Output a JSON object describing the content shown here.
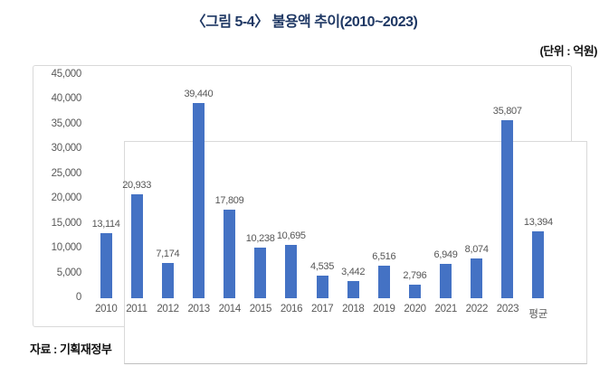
{
  "header": {
    "title": "〈그림 5-4〉 불용액 추이(2010~2023)",
    "unit_label": "(단위 : 억원)"
  },
  "footer": {
    "source": "자료 : 기획재정부"
  },
  "colors": {
    "bar": "#4472C4",
    "title": "#1F3864",
    "tick_label": "#595959",
    "value_label": "#555555",
    "frame_border": "#d9d9d9",
    "axis_line": "#bfbfbf"
  },
  "chart_data": {
    "type": "bar",
    "title": "불용액 추이(2010~2023)",
    "unit": "억원",
    "categories": [
      "2010",
      "2011",
      "2012",
      "2013",
      "2014",
      "2015",
      "2016",
      "2017",
      "2018",
      "2019",
      "2020",
      "2021",
      "2022",
      "2023",
      "평균"
    ],
    "values": [
      13114,
      20933,
      7174,
      39440,
      17809,
      10238,
      10695,
      4535,
      3442,
      6516,
      2796,
      6949,
      8074,
      35807,
      13394
    ],
    "value_labels": [
      "13,114",
      "20,933",
      "7,174",
      "39,440",
      "17,809",
      "10,238",
      "10,695",
      "4,535",
      "3,442",
      "6,516",
      "2,796",
      "6,949",
      "8,074",
      "35,807",
      "13,394"
    ],
    "ylim": [
      0,
      45000
    ],
    "yticks": [
      0,
      5000,
      10000,
      15000,
      20000,
      25000,
      30000,
      35000,
      40000,
      45000
    ],
    "ytick_labels": [
      "0",
      "5,000",
      "10,000",
      "15,000",
      "20,000",
      "25,000",
      "30,000",
      "35,000",
      "40,000",
      "45,000"
    ],
    "grid": false,
    "legend": false,
    "data_labels_shown": true
  }
}
